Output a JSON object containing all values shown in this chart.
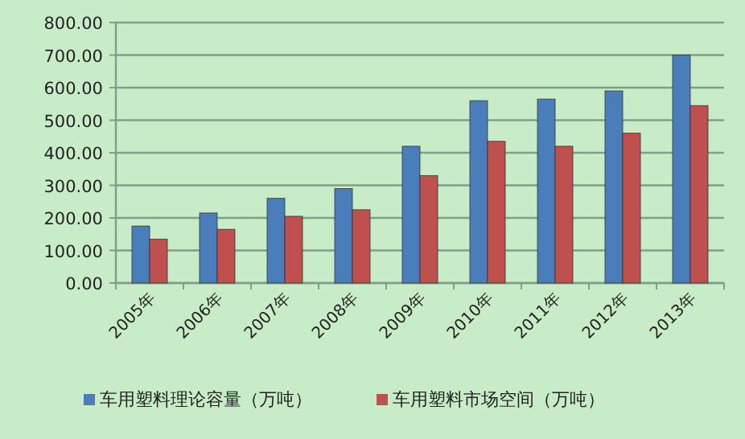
{
  "chart_data": {
    "type": "bar",
    "categories": [
      "2005年",
      "2006年",
      "2007年",
      "2008年",
      "2009年",
      "2010年",
      "2011年",
      "2012年",
      "2013年"
    ],
    "series": [
      {
        "name": "车用塑料理论容量（万吨）",
        "color": "#4a7ebb",
        "values": [
          175,
          215,
          260,
          290,
          420,
          560,
          565,
          590,
          700
        ]
      },
      {
        "name": "车用塑料市场空间（万吨）",
        "color": "#c0504d",
        "values": [
          135,
          165,
          205,
          225,
          330,
          435,
          420,
          460,
          545
        ]
      }
    ],
    "ylim": [
      0,
      800
    ],
    "yticks": [
      {
        "value": 0,
        "label": "0.00"
      },
      {
        "value": 100,
        "label": "100.00"
      },
      {
        "value": 200,
        "label": "200.00"
      },
      {
        "value": 300,
        "label": "300.00"
      },
      {
        "value": 400,
        "label": "400.00"
      },
      {
        "value": 500,
        "label": "500.00"
      },
      {
        "value": 600,
        "label": "600.00"
      },
      {
        "value": 700,
        "label": "700.00"
      },
      {
        "value": 800,
        "label": "800.00"
      }
    ],
    "grid": "y",
    "legend": "bottom"
  }
}
